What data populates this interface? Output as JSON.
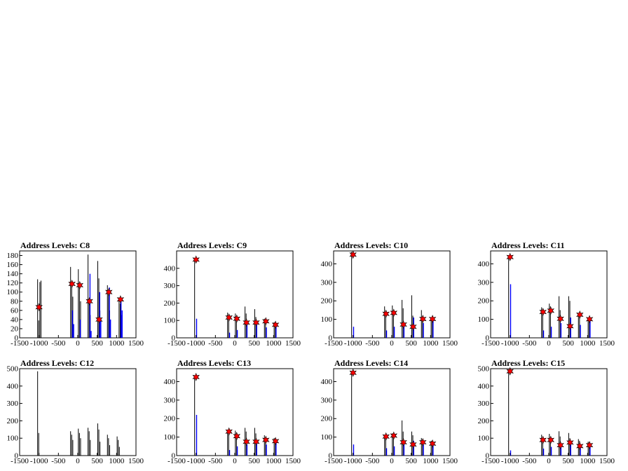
{
  "colors": {
    "primary": "#000000",
    "secondary": "#0000ff",
    "marker": "#ff0000",
    "frame": "#000000",
    "background": "#ffffff"
  },
  "chart_data": [
    {
      "type": "bar",
      "title": "Address Levels: C8",
      "xlim": [
        -1500,
        1500
      ],
      "ylim": [
        0,
        190
      ],
      "xticks": [
        -1500,
        -1000,
        -500,
        0,
        500,
        1000,
        1500
      ],
      "yticks": [
        0,
        20,
        40,
        60,
        80,
        100,
        120,
        140,
        160,
        180
      ],
      "groups": [
        {
          "x": -1000,
          "black": [
            128,
            38,
            122,
            125
          ],
          "blue": []
        },
        {
          "x": -150,
          "black": [
            155,
            120,
            90
          ],
          "blue": [
            60,
            30
          ]
        },
        {
          "x": 50,
          "black": [
            150,
            115,
            80
          ],
          "blue": [
            40
          ]
        },
        {
          "x": 300,
          "black": [
            182,
            80,
            50
          ],
          "blue": [
            140,
            15
          ]
        },
        {
          "x": 550,
          "black": [
            168,
            130,
            60
          ],
          "blue": [
            100,
            40
          ]
        },
        {
          "x": 800,
          "black": [
            115,
            95,
            60
          ],
          "blue": [
            110,
            40
          ]
        },
        {
          "x": 1100,
          "black": [
            88,
            75,
            50
          ],
          "blue": [
            85,
            60
          ]
        }
      ],
      "markers": [
        {
          "x": -1000,
          "y": 67
        },
        {
          "x": -150,
          "y": 118
        },
        {
          "x": 50,
          "y": 115
        },
        {
          "x": 300,
          "y": 80
        },
        {
          "x": 550,
          "y": 40
        },
        {
          "x": 800,
          "y": 100
        },
        {
          "x": 1100,
          "y": 84
        }
      ]
    },
    {
      "type": "bar",
      "title": "Address Levels: C9",
      "xlim": [
        -1500,
        1500
      ],
      "ylim": [
        0,
        500
      ],
      "xticks": [
        -1500,
        -1000,
        -500,
        0,
        500,
        1000,
        1500
      ],
      "yticks": [
        0,
        100,
        200,
        300,
        400
      ],
      "groups": [
        {
          "x": -1000,
          "black": [
            460
          ],
          "blue": [
            110
          ]
        },
        {
          "x": -150,
          "black": [
            145,
            120
          ],
          "blue": [
            30
          ]
        },
        {
          "x": 50,
          "black": [
            140,
            110
          ],
          "blue": [
            45
          ]
        },
        {
          "x": 300,
          "black": [
            180,
            140
          ],
          "blue": [
            80
          ]
        },
        {
          "x": 550,
          "black": [
            165,
            120
          ],
          "blue": [
            90
          ]
        },
        {
          "x": 800,
          "black": [
            110,
            95
          ],
          "blue": [
            60
          ]
        },
        {
          "x": 1050,
          "black": [
            90,
            80
          ],
          "blue": [
            70
          ]
        }
      ],
      "markers": [
        {
          "x": -1000,
          "y": 450
        },
        {
          "x": -150,
          "y": 117
        },
        {
          "x": 50,
          "y": 110
        },
        {
          "x": 300,
          "y": 88
        },
        {
          "x": 550,
          "y": 88
        },
        {
          "x": 800,
          "y": 95
        },
        {
          "x": 1050,
          "y": 75
        }
      ]
    },
    {
      "type": "bar",
      "title": "Address Levels: C10",
      "xlim": [
        -1500,
        1500
      ],
      "ylim": [
        0,
        470
      ],
      "xticks": [
        -1500,
        -1000,
        -500,
        0,
        500,
        1000,
        1500
      ],
      "yticks": [
        0,
        100,
        200,
        300,
        400
      ],
      "groups": [
        {
          "x": -1000,
          "black": [
            465
          ],
          "blue": [
            60
          ]
        },
        {
          "x": -150,
          "black": [
            170,
            140
          ],
          "blue": [
            40
          ]
        },
        {
          "x": 50,
          "black": [
            175,
            150
          ],
          "blue": [
            60
          ]
        },
        {
          "x": 300,
          "black": [
            205,
            160
          ],
          "blue": [
            70
          ]
        },
        {
          "x": 550,
          "black": [
            230,
            120
          ],
          "blue": [
            110
          ]
        },
        {
          "x": 800,
          "black": [
            150,
            110
          ],
          "blue": [
            80
          ]
        },
        {
          "x": 1050,
          "black": [
            110,
            95
          ],
          "blue": [
            105
          ]
        }
      ],
      "markers": [
        {
          "x": -1000,
          "y": 450
        },
        {
          "x": -150,
          "y": 130
        },
        {
          "x": 50,
          "y": 135
        },
        {
          "x": 300,
          "y": 72
        },
        {
          "x": 550,
          "y": 60
        },
        {
          "x": 800,
          "y": 102
        },
        {
          "x": 1050,
          "y": 102
        }
      ]
    },
    {
      "type": "bar",
      "title": "Address Levels: C11",
      "xlim": [
        -1500,
        1500
      ],
      "ylim": [
        0,
        470
      ],
      "xticks": [
        -1500,
        -1000,
        -500,
        0,
        500,
        1000,
        1500
      ],
      "yticks": [
        0,
        100,
        200,
        300,
        400
      ],
      "groups": [
        {
          "x": -1000,
          "black": [
            440
          ],
          "blue": [
            290
          ]
        },
        {
          "x": -150,
          "black": [
            165,
            140
          ],
          "blue": [
            40
          ]
        },
        {
          "x": 50,
          "black": [
            185,
            170
          ],
          "blue": [
            60
          ]
        },
        {
          "x": 300,
          "black": [
            225,
            150
          ],
          "blue": [
            80
          ]
        },
        {
          "x": 550,
          "black": [
            225,
            200
          ],
          "blue": [
            110
          ]
        },
        {
          "x": 800,
          "black": [
            135,
            120
          ],
          "blue": [
            70
          ]
        },
        {
          "x": 1050,
          "black": [
            110,
            95
          ],
          "blue": [
            100
          ]
        }
      ],
      "markers": [
        {
          "x": -1000,
          "y": 437
        },
        {
          "x": -150,
          "y": 140
        },
        {
          "x": 50,
          "y": 147
        },
        {
          "x": 300,
          "y": 103
        },
        {
          "x": 550,
          "y": 63
        },
        {
          "x": 800,
          "y": 125
        },
        {
          "x": 1050,
          "y": 101
        }
      ]
    },
    {
      "type": "bar",
      "title": "Address Levels: C12",
      "xlim": [
        -1500,
        1500
      ],
      "ylim": [
        0,
        500
      ],
      "xticks": [
        -1500,
        -1000,
        -500,
        0,
        500,
        1000,
        1500
      ],
      "yticks": [
        0,
        100,
        200,
        300,
        400,
        500
      ],
      "groups": [
        {
          "x": -1000,
          "black": [
            485,
            130
          ],
          "blue": []
        },
        {
          "x": -150,
          "black": [
            140,
            120,
            90
          ],
          "blue": []
        },
        {
          "x": 50,
          "black": [
            155,
            130,
            100
          ],
          "blue": []
        },
        {
          "x": 300,
          "black": [
            160,
            140,
            90
          ],
          "blue": []
        },
        {
          "x": 550,
          "black": [
            185,
            150,
            80
          ],
          "blue": []
        },
        {
          "x": 800,
          "black": [
            120,
            100,
            60
          ],
          "blue": []
        },
        {
          "x": 1050,
          "black": [
            110,
            90,
            50
          ],
          "blue": []
        }
      ],
      "markers": []
    },
    {
      "type": "bar",
      "title": "Address Levels: C13",
      "xlim": [
        -1500,
        1500
      ],
      "ylim": [
        0,
        470
      ],
      "xticks": [
        -1500,
        -1000,
        -500,
        0,
        500,
        1000,
        1500
      ],
      "yticks": [
        0,
        100,
        200,
        300,
        400
      ],
      "groups": [
        {
          "x": -1000,
          "black": [
            425
          ],
          "blue": [
            220
          ]
        },
        {
          "x": -150,
          "black": [
            135,
            120
          ],
          "blue": [
            30
          ]
        },
        {
          "x": 50,
          "black": [
            135,
            125
          ],
          "blue": [
            50
          ]
        },
        {
          "x": 300,
          "black": [
            150,
            130
          ],
          "blue": [
            60
          ]
        },
        {
          "x": 550,
          "black": [
            150,
            120
          ],
          "blue": [
            80
          ]
        },
        {
          "x": 800,
          "black": [
            110,
            95
          ],
          "blue": [
            60
          ]
        },
        {
          "x": 1050,
          "black": [
            95,
            80
          ],
          "blue": [
            70
          ]
        }
      ],
      "markers": [
        {
          "x": -1000,
          "y": 425
        },
        {
          "x": -150,
          "y": 130
        },
        {
          "x": 50,
          "y": 105
        },
        {
          "x": 300,
          "y": 75
        },
        {
          "x": 550,
          "y": 75
        },
        {
          "x": 800,
          "y": 85
        },
        {
          "x": 1050,
          "y": 78
        }
      ]
    },
    {
      "type": "bar",
      "title": "Address Levels: C14",
      "xlim": [
        -1500,
        1500
      ],
      "ylim": [
        0,
        470
      ],
      "xticks": [
        -1500,
        -1000,
        -500,
        0,
        500,
        1000,
        1500
      ],
      "yticks": [
        0,
        100,
        200,
        300,
        400
      ],
      "groups": [
        {
          "x": -1000,
          "black": [
            450
          ],
          "blue": [
            60
          ]
        },
        {
          "x": -150,
          "black": [
            110,
            95
          ],
          "blue": [
            40
          ]
        },
        {
          "x": 50,
          "black": [
            120,
            110
          ],
          "blue": [
            50
          ]
        },
        {
          "x": 300,
          "black": [
            190,
            130
          ],
          "blue": [
            70
          ]
        },
        {
          "x": 550,
          "black": [
            130,
            110
          ],
          "blue": [
            80
          ]
        },
        {
          "x": 800,
          "black": [
            95,
            80
          ],
          "blue": [
            60
          ]
        },
        {
          "x": 1050,
          "black": [
            80,
            70
          ],
          "blue": [
            55
          ]
        }
      ],
      "markers": [
        {
          "x": -1000,
          "y": 448
        },
        {
          "x": -150,
          "y": 103
        },
        {
          "x": 50,
          "y": 108
        },
        {
          "x": 300,
          "y": 72
        },
        {
          "x": 550,
          "y": 60
        },
        {
          "x": 800,
          "y": 72
        },
        {
          "x": 1050,
          "y": 65
        }
      ]
    },
    {
      "type": "bar",
      "title": "Address Levels: C15",
      "xlim": [
        -1500,
        1500
      ],
      "ylim": [
        0,
        500
      ],
      "xticks": [
        -1500,
        -1000,
        -500,
        0,
        500,
        1000,
        1500
      ],
      "yticks": [
        0,
        100,
        200,
        300,
        400,
        500
      ],
      "groups": [
        {
          "x": -1000,
          "black": [
            495
          ],
          "blue": [
            30
          ]
        },
        {
          "x": -150,
          "black": [
            120,
            100
          ],
          "blue": [
            40
          ]
        },
        {
          "x": 50,
          "black": [
            125,
            105
          ],
          "blue": [
            50
          ]
        },
        {
          "x": 300,
          "black": [
            140,
            110
          ],
          "blue": [
            60
          ]
        },
        {
          "x": 550,
          "black": [
            130,
            100
          ],
          "blue": [
            70
          ]
        },
        {
          "x": 800,
          "black": [
            95,
            85
          ],
          "blue": [
            55
          ]
        },
        {
          "x": 1050,
          "black": [
            80,
            65
          ],
          "blue": [
            50
          ]
        }
      ],
      "markers": [
        {
          "x": -1000,
          "y": 485
        },
        {
          "x": -150,
          "y": 90
        },
        {
          "x": 50,
          "y": 90
        },
        {
          "x": 300,
          "y": 60
        },
        {
          "x": 550,
          "y": 75
        },
        {
          "x": 800,
          "y": 55
        },
        {
          "x": 1050,
          "y": 60
        }
      ]
    }
  ]
}
